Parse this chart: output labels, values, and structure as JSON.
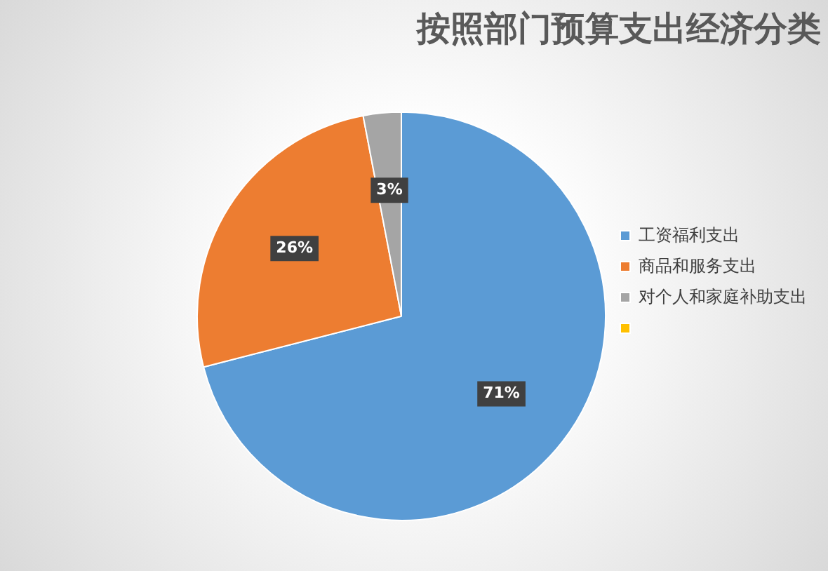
{
  "chart_data": {
    "type": "pie",
    "title": "按照部门预算支出经济分类",
    "categories": [
      "工资福利支出",
      "商品和服务支出",
      "对个人和家庭补助支出",
      null
    ],
    "values": [
      71,
      26,
      3,
      0
    ],
    "colors": [
      "#5b9bd5",
      "#ed7d31",
      "#a5a5a5",
      "#ffc000"
    ],
    "value_labels": [
      "71%",
      "26%",
      "3%",
      null
    ],
    "legend": "right"
  }
}
